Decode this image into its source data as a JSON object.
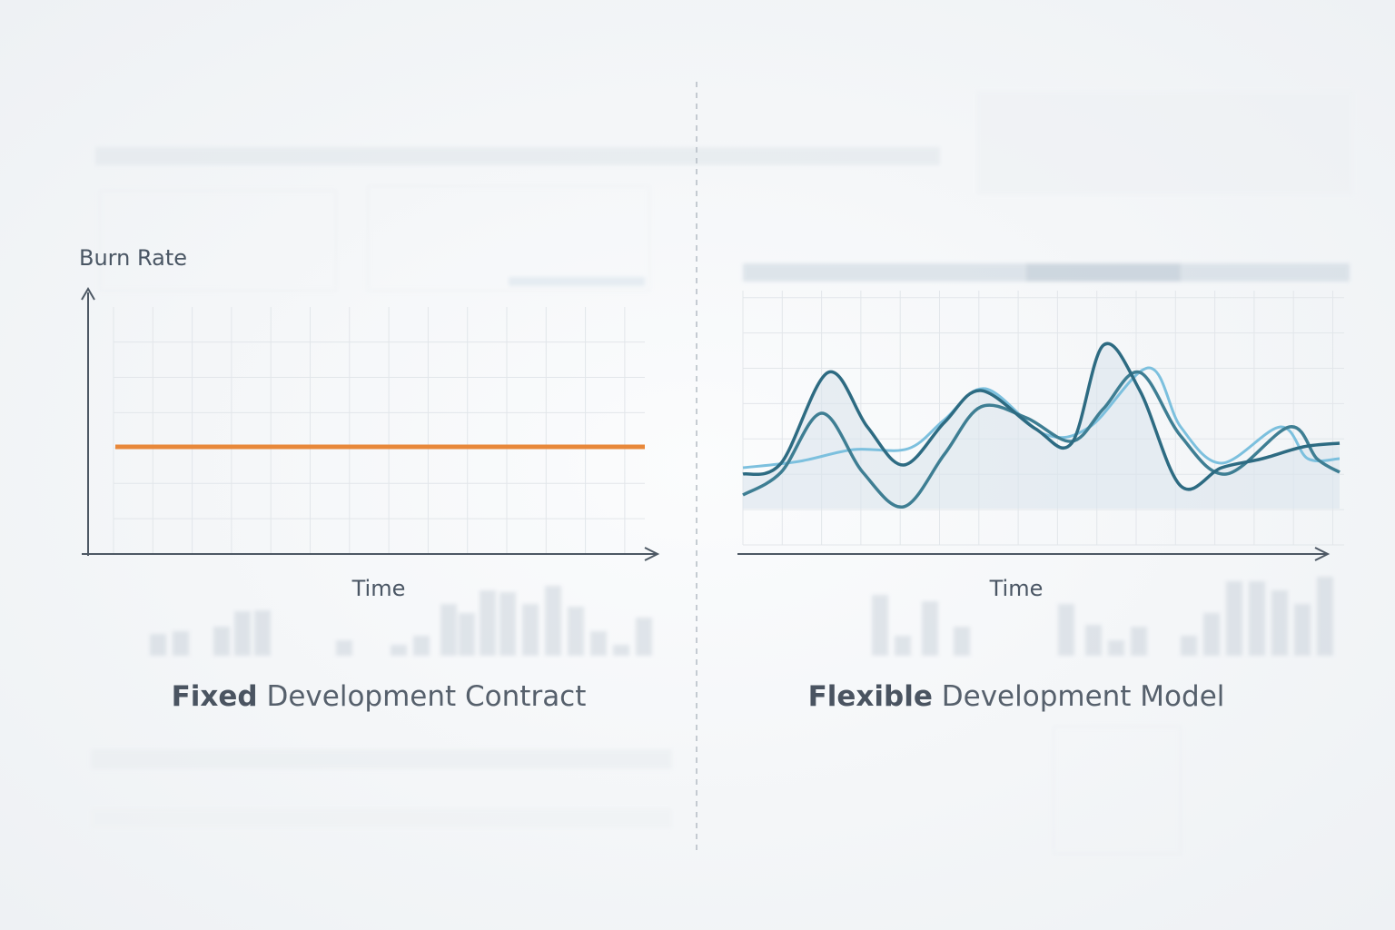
{
  "left": {
    "y_label": "Burn Rate",
    "x_label": "Time",
    "caption_bold": "Fixed",
    "caption_rest": "Development Contract"
  },
  "right": {
    "x_label": "Time",
    "caption_bold": "Flexible",
    "caption_rest": "Development Model"
  }
}
